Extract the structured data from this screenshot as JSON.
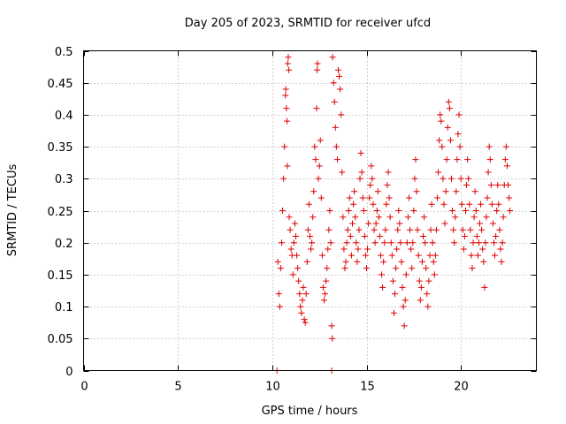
{
  "chart_data": {
    "type": "scatter",
    "title": "Day 205 of 2023, SRMTID for receiver ufcd",
    "xlabel": "GPS time / hours",
    "ylabel": "SRMTID / TECUs",
    "xlim": [
      0,
      24
    ],
    "ylim": [
      0,
      0.5
    ],
    "grid": true,
    "marker": "plus",
    "color": "#e00000",
    "xticks": [
      0,
      5,
      10,
      15,
      20
    ],
    "xtick_labels": [
      "0",
      "5",
      "10",
      "15",
      "20"
    ],
    "yticks": [
      0,
      0.05,
      0.1,
      0.15,
      0.2,
      0.25,
      0.3,
      0.35,
      0.4,
      0.45,
      0.5
    ],
    "ytick_labels": [
      "0",
      "0.05",
      "0.1",
      "0.15",
      "0.2",
      "0.25",
      "0.3",
      "0.35",
      "0.4",
      "0.45",
      "0.5"
    ],
    "series": [
      {
        "name": "SRMTID",
        "points": [
          [
            10.25,
            0.0
          ],
          [
            13.15,
            0.0
          ],
          [
            10.3,
            0.17
          ],
          [
            10.35,
            0.12
          ],
          [
            10.4,
            0.1
          ],
          [
            10.45,
            0.16
          ],
          [
            10.5,
            0.2
          ],
          [
            10.55,
            0.25
          ],
          [
            10.6,
            0.3
          ],
          [
            10.65,
            0.35
          ],
          [
            10.7,
            0.43
          ],
          [
            10.72,
            0.44
          ],
          [
            10.75,
            0.41
          ],
          [
            10.78,
            0.39
          ],
          [
            10.8,
            0.32
          ],
          [
            10.82,
            0.48
          ],
          [
            10.85,
            0.49
          ],
          [
            10.88,
            0.47
          ],
          [
            10.9,
            0.24
          ],
          [
            10.95,
            0.22
          ],
          [
            11.0,
            0.19
          ],
          [
            11.05,
            0.18
          ],
          [
            11.1,
            0.15
          ],
          [
            11.15,
            0.2
          ],
          [
            11.2,
            0.23
          ],
          [
            11.25,
            0.21
          ],
          [
            11.3,
            0.18
          ],
          [
            11.35,
            0.16
          ],
          [
            11.4,
            0.14
          ],
          [
            11.45,
            0.12
          ],
          [
            11.5,
            0.1
          ],
          [
            11.55,
            0.09
          ],
          [
            11.6,
            0.11
          ],
          [
            11.65,
            0.13
          ],
          [
            11.7,
            0.08
          ],
          [
            11.75,
            0.075
          ],
          [
            11.8,
            0.12
          ],
          [
            11.85,
            0.17
          ],
          [
            11.9,
            0.22
          ],
          [
            11.95,
            0.26
          ],
          [
            12.0,
            0.21
          ],
          [
            12.05,
            0.19
          ],
          [
            12.1,
            0.2
          ],
          [
            12.15,
            0.24
          ],
          [
            12.2,
            0.28
          ],
          [
            12.25,
            0.35
          ],
          [
            12.3,
            0.33
          ],
          [
            12.35,
            0.41
          ],
          [
            12.38,
            0.47
          ],
          [
            12.4,
            0.48
          ],
          [
            12.45,
            0.3
          ],
          [
            12.5,
            0.32
          ],
          [
            12.55,
            0.36
          ],
          [
            12.6,
            0.27
          ],
          [
            12.65,
            0.18
          ],
          [
            12.7,
            0.13
          ],
          [
            12.75,
            0.11
          ],
          [
            12.8,
            0.12
          ],
          [
            12.85,
            0.14
          ],
          [
            12.9,
            0.16
          ],
          [
            12.95,
            0.19
          ],
          [
            13.0,
            0.22
          ],
          [
            13.05,
            0.25
          ],
          [
            13.1,
            0.2
          ],
          [
            13.15,
            0.07
          ],
          [
            13.18,
            0.05
          ],
          [
            13.2,
            0.49
          ],
          [
            13.25,
            0.45
          ],
          [
            13.3,
            0.42
          ],
          [
            13.35,
            0.38
          ],
          [
            13.4,
            0.35
          ],
          [
            13.45,
            0.33
          ],
          [
            13.5,
            0.47
          ],
          [
            13.55,
            0.46
          ],
          [
            13.6,
            0.44
          ],
          [
            13.65,
            0.4
          ],
          [
            13.7,
            0.31
          ],
          [
            13.75,
            0.24
          ],
          [
            13.8,
            0.19
          ],
          [
            13.85,
            0.16
          ],
          [
            13.9,
            0.17
          ],
          [
            13.95,
            0.2
          ],
          [
            14.0,
            0.22
          ],
          [
            14.05,
            0.25
          ],
          [
            14.1,
            0.27
          ],
          [
            14.15,
            0.21
          ],
          [
            14.2,
            0.18
          ],
          [
            14.25,
            0.23
          ],
          [
            14.3,
            0.26
          ],
          [
            14.35,
            0.28
          ],
          [
            14.4,
            0.24
          ],
          [
            14.45,
            0.2
          ],
          [
            14.5,
            0.17
          ],
          [
            14.55,
            0.19
          ],
          [
            14.6,
            0.22
          ],
          [
            14.65,
            0.3
          ],
          [
            14.7,
            0.34
          ],
          [
            14.75,
            0.31
          ],
          [
            14.8,
            0.27
          ],
          [
            14.85,
            0.25
          ],
          [
            14.9,
            0.21
          ],
          [
            14.95,
            0.18
          ],
          [
            15.0,
            0.16
          ],
          [
            15.05,
            0.19
          ],
          [
            15.1,
            0.23
          ],
          [
            15.15,
            0.27
          ],
          [
            15.2,
            0.29
          ],
          [
            15.25,
            0.32
          ],
          [
            15.3,
            0.3
          ],
          [
            15.35,
            0.26
          ],
          [
            15.4,
            0.22
          ],
          [
            15.45,
            0.2
          ],
          [
            15.5,
            0.23
          ],
          [
            15.55,
            0.25
          ],
          [
            15.6,
            0.28
          ],
          [
            15.65,
            0.24
          ],
          [
            15.7,
            0.21
          ],
          [
            15.75,
            0.18
          ],
          [
            15.8,
            0.15
          ],
          [
            15.85,
            0.13
          ],
          [
            15.9,
            0.17
          ],
          [
            15.95,
            0.2
          ],
          [
            16.0,
            0.22
          ],
          [
            16.05,
            0.26
          ],
          [
            16.1,
            0.29
          ],
          [
            16.15,
            0.31
          ],
          [
            16.2,
            0.27
          ],
          [
            16.25,
            0.24
          ],
          [
            16.3,
            0.2
          ],
          [
            16.35,
            0.18
          ],
          [
            16.4,
            0.14
          ],
          [
            16.45,
            0.09
          ],
          [
            16.5,
            0.12
          ],
          [
            16.55,
            0.16
          ],
          [
            16.6,
            0.19
          ],
          [
            16.65,
            0.22
          ],
          [
            16.7,
            0.25
          ],
          [
            16.75,
            0.23
          ],
          [
            16.8,
            0.2
          ],
          [
            16.85,
            0.17
          ],
          [
            16.9,
            0.13
          ],
          [
            16.95,
            0.1
          ],
          [
            17.0,
            0.07
          ],
          [
            17.05,
            0.11
          ],
          [
            17.1,
            0.15
          ],
          [
            17.15,
            0.2
          ],
          [
            17.2,
            0.24
          ],
          [
            17.25,
            0.27
          ],
          [
            17.3,
            0.22
          ],
          [
            17.35,
            0.19
          ],
          [
            17.4,
            0.16
          ],
          [
            17.45,
            0.2
          ],
          [
            17.5,
            0.25
          ],
          [
            17.55,
            0.3
          ],
          [
            17.6,
            0.33
          ],
          [
            17.65,
            0.28
          ],
          [
            17.7,
            0.22
          ],
          [
            17.75,
            0.18
          ],
          [
            17.8,
            0.14
          ],
          [
            17.85,
            0.11
          ],
          [
            17.9,
            0.13
          ],
          [
            17.95,
            0.17
          ],
          [
            18.0,
            0.21
          ],
          [
            18.05,
            0.24
          ],
          [
            18.1,
            0.2
          ],
          [
            18.15,
            0.16
          ],
          [
            18.2,
            0.12
          ],
          [
            18.25,
            0.1
          ],
          [
            18.3,
            0.14
          ],
          [
            18.35,
            0.18
          ],
          [
            18.4,
            0.22
          ],
          [
            18.45,
            0.26
          ],
          [
            18.5,
            0.2
          ],
          [
            18.55,
            0.17
          ],
          [
            18.6,
            0.15
          ],
          [
            18.65,
            0.18
          ],
          [
            18.7,
            0.22
          ],
          [
            18.75,
            0.27
          ],
          [
            18.8,
            0.31
          ],
          [
            18.85,
            0.36
          ],
          [
            18.9,
            0.4
          ],
          [
            18.95,
            0.39
          ],
          [
            19.0,
            0.35
          ],
          [
            19.05,
            0.3
          ],
          [
            19.1,
            0.26
          ],
          [
            19.15,
            0.23
          ],
          [
            19.2,
            0.28
          ],
          [
            19.25,
            0.33
          ],
          [
            19.3,
            0.38
          ],
          [
            19.35,
            0.42
          ],
          [
            19.4,
            0.41
          ],
          [
            19.45,
            0.36
          ],
          [
            19.5,
            0.3
          ],
          [
            19.55,
            0.25
          ],
          [
            19.6,
            0.22
          ],
          [
            19.65,
            0.2
          ],
          [
            19.7,
            0.24
          ],
          [
            19.75,
            0.28
          ],
          [
            19.8,
            0.33
          ],
          [
            19.85,
            0.37
          ],
          [
            19.9,
            0.4
          ],
          [
            19.95,
            0.35
          ],
          [
            20.0,
            0.3
          ],
          [
            20.05,
            0.26
          ],
          [
            20.1,
            0.22
          ],
          [
            20.15,
            0.19
          ],
          [
            20.2,
            0.21
          ],
          [
            20.25,
            0.25
          ],
          [
            20.3,
            0.29
          ],
          [
            20.35,
            0.33
          ],
          [
            20.4,
            0.3
          ],
          [
            20.45,
            0.26
          ],
          [
            20.5,
            0.22
          ],
          [
            20.55,
            0.18
          ],
          [
            20.6,
            0.16
          ],
          [
            20.65,
            0.2
          ],
          [
            20.7,
            0.24
          ],
          [
            20.75,
            0.28
          ],
          [
            20.8,
            0.25
          ],
          [
            20.85,
            0.21
          ],
          [
            20.9,
            0.18
          ],
          [
            20.95,
            0.2
          ],
          [
            21.0,
            0.23
          ],
          [
            21.05,
            0.26
          ],
          [
            21.1,
            0.22
          ],
          [
            21.15,
            0.19
          ],
          [
            21.2,
            0.17
          ],
          [
            21.25,
            0.13
          ],
          [
            21.3,
            0.2
          ],
          [
            21.35,
            0.24
          ],
          [
            21.4,
            0.27
          ],
          [
            21.45,
            0.31
          ],
          [
            21.5,
            0.35
          ],
          [
            21.55,
            0.33
          ],
          [
            21.6,
            0.29
          ],
          [
            21.65,
            0.26
          ],
          [
            21.7,
            0.23
          ],
          [
            21.75,
            0.2
          ],
          [
            21.8,
            0.18
          ],
          [
            21.85,
            0.21
          ],
          [
            21.9,
            0.25
          ],
          [
            21.95,
            0.29
          ],
          [
            22.0,
            0.26
          ],
          [
            22.05,
            0.22
          ],
          [
            22.1,
            0.19
          ],
          [
            22.15,
            0.17
          ],
          [
            22.2,
            0.2
          ],
          [
            22.25,
            0.24
          ],
          [
            22.3,
            0.29
          ],
          [
            22.35,
            0.33
          ],
          [
            22.4,
            0.35
          ],
          [
            22.45,
            0.32
          ],
          [
            22.5,
            0.29
          ],
          [
            22.55,
            0.27
          ],
          [
            22.6,
            0.25
          ]
        ]
      }
    ]
  }
}
